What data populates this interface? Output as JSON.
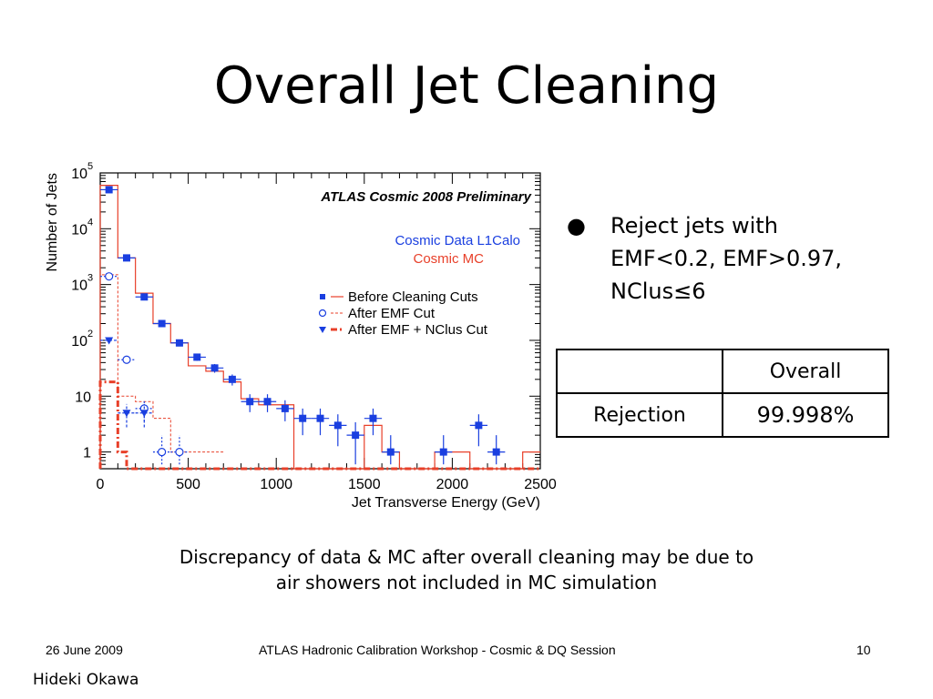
{
  "slide": {
    "title": "Overall Jet Cleaning",
    "bullet": {
      "line1": "Reject jets with",
      "line2": "EMF<0.2, EMF>0.97,",
      "line3": "NClus≤6"
    },
    "table": {
      "header": [
        "",
        "Overall"
      ],
      "rows": [
        [
          "Rejection",
          "99.998%"
        ]
      ]
    },
    "caption": {
      "line1": "Discrepancy of data & MC after overall cleaning may be due to",
      "line2": "air showers not included in MC simulation"
    },
    "footer": {
      "date": "26 June 2009",
      "event": "ATLAS Hadronic Calibration Workshop -  Cosmic & DQ Session",
      "page": "10"
    },
    "author": "Hideki Okawa"
  },
  "chart_data": {
    "type": "histogram",
    "scale_y": "log",
    "xlim": [
      0,
      2500
    ],
    "ylim_log10": [
      -0.3,
      5
    ],
    "xlabel": "Jet Transverse Energy (GeV)",
    "ylabel": "Number of Jets",
    "x_ticks": [
      "0",
      "500",
      "1000",
      "1500",
      "2000",
      "2500"
    ],
    "y_ticks": [
      {
        "base": "1",
        "exp": "",
        "val": 0
      },
      {
        "base": "10",
        "exp": "",
        "val": 1
      },
      {
        "base": "10",
        "exp": "2",
        "val": 2
      },
      {
        "base": "10",
        "exp": "3",
        "val": 3
      },
      {
        "base": "10",
        "exp": "4",
        "val": 4
      },
      {
        "base": "10",
        "exp": "5",
        "val": 5
      }
    ],
    "annotation": "ATLAS Cosmic 2008 Preliminary",
    "label_data": "Cosmic Data L1Calo",
    "label_mc": "Cosmic MC",
    "colors": {
      "data": "#1a3fe0",
      "mc": "#e8402a"
    },
    "legend": [
      {
        "label": "Before Cleaning Cuts",
        "marker": "square",
        "line": "solid"
      },
      {
        "label": "After EMF Cut",
        "marker": "circle",
        "line": "dashed"
      },
      {
        "label": "After EMF + NClus Cut",
        "marker": "triangle",
        "line": "dashdot"
      }
    ],
    "series": [
      {
        "name": "Before Cleaning Cuts",
        "marker": "square",
        "data_points": [
          [
            50,
            50000
          ],
          [
            150,
            3000
          ],
          [
            250,
            600
          ],
          [
            350,
            200
          ],
          [
            450,
            90
          ],
          [
            550,
            50
          ],
          [
            650,
            32
          ],
          [
            750,
            20
          ],
          [
            850,
            8
          ],
          [
            950,
            8
          ],
          [
            1050,
            6
          ],
          [
            1150,
            4
          ],
          [
            1250,
            4
          ],
          [
            1350,
            3
          ],
          [
            1450,
            2
          ],
          [
            1550,
            4
          ],
          [
            1650,
            1
          ],
          [
            1950,
            1
          ],
          [
            2150,
            3
          ],
          [
            2250,
            1
          ]
        ],
        "mc_edges": [
          0,
          100,
          200,
          300,
          400,
          500,
          600,
          700,
          800,
          900,
          1000,
          1100,
          1200,
          1300,
          1400,
          1500,
          1600,
          1700,
          1800,
          1900,
          2000,
          2100,
          2200,
          2300,
          2400,
          2500
        ],
        "mc_values": [
          60000,
          3000,
          700,
          200,
          90,
          35,
          28,
          18,
          9,
          7,
          7,
          0.5,
          0.5,
          0.5,
          0.5,
          3,
          1,
          0.5,
          0.5,
          1,
          1,
          0.5,
          0.5,
          0.5,
          1
        ]
      },
      {
        "name": "After EMF Cut",
        "marker": "circle",
        "data_points": [
          [
            50,
            1400
          ],
          [
            150,
            45
          ],
          [
            250,
            6
          ],
          [
            350,
            1
          ],
          [
            450,
            1
          ]
        ],
        "mc_edges": [
          0,
          100,
          200,
          300,
          400,
          500,
          600,
          700
        ],
        "mc_values": [
          1500,
          10,
          8,
          4,
          1,
          1,
          1
        ]
      },
      {
        "name": "After EMF + NClus Cut",
        "marker": "triangle",
        "data_points": [
          [
            50,
            100
          ],
          [
            150,
            5
          ],
          [
            250,
            5
          ]
        ],
        "mc_edges": [
          0,
          100,
          150,
          200,
          2500
        ],
        "mc_values": [
          18,
          1,
          0.5,
          0.5
        ]
      }
    ]
  }
}
